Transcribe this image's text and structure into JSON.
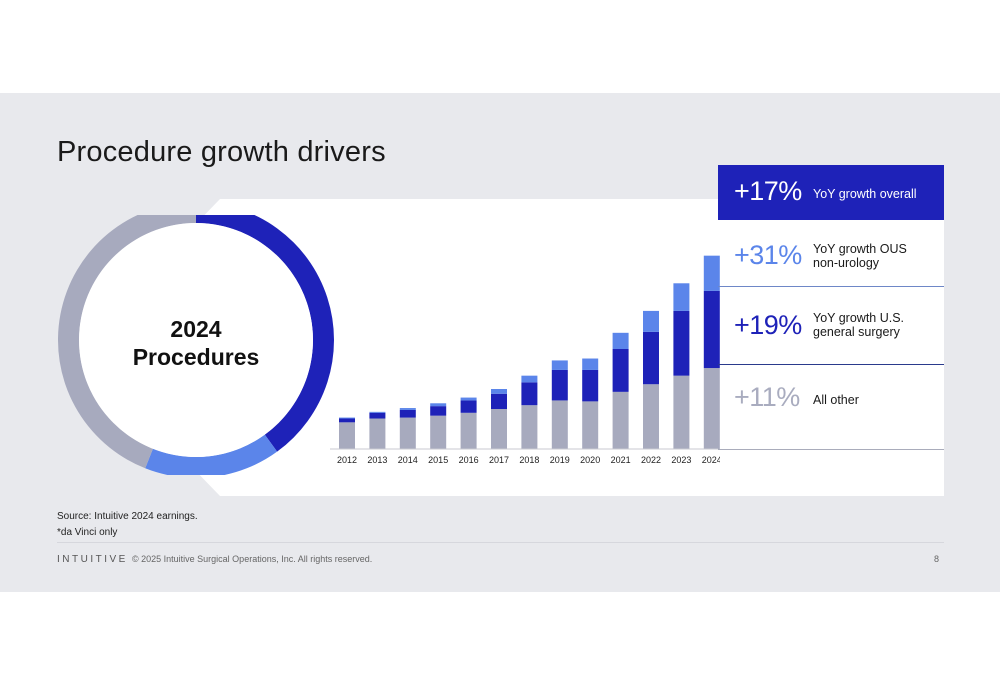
{
  "title": "Procedure growth drivers",
  "donut": {
    "center_line1": "2024",
    "center_line2": "Procedures"
  },
  "chart_data": [
    {
      "type": "pie",
      "title": "2024 Procedures",
      "slices": [
        {
          "label": "OUS non-urology",
          "value": 16,
          "color": "#5b85ea"
        },
        {
          "label": "U.S. general surgery",
          "value": 40,
          "color": "#1e22b8"
        },
        {
          "label": "All other",
          "value": 44,
          "color": "#a7aabe"
        }
      ]
    },
    {
      "type": "bar",
      "stacked": true,
      "categories": [
        "2012",
        "2013",
        "2014",
        "2015",
        "2016",
        "2017",
        "2018",
        "2019",
        "2020",
        "2021",
        "2022",
        "2023",
        "2024"
      ],
      "series": [
        {
          "name": "All other",
          "color": "#a7aabe",
          "values": [
            28,
            32,
            33,
            35,
            38,
            42,
            46,
            51,
            50,
            60,
            68,
            77,
            85
          ]
        },
        {
          "name": "YoY growth U.S. general surgery",
          "color": "#1e22b8",
          "values": [
            4,
            6,
            8,
            10,
            13,
            16,
            24,
            32,
            33,
            45,
            55,
            68,
            81
          ]
        },
        {
          "name": "YoY growth OUS non-urology",
          "color": "#5b85ea",
          "values": [
            1,
            1,
            2,
            3,
            3,
            5,
            7,
            10,
            12,
            17,
            22,
            29,
            37
          ]
        }
      ],
      "grid": false
    }
  ],
  "stats": [
    {
      "pct": "+17%",
      "text1": "YoY growth overall",
      "text2": ""
    },
    {
      "pct": "+31%",
      "text1": "YoY growth OUS",
      "text2": "non-urology"
    },
    {
      "pct": "+19%",
      "text1": "YoY growth U.S.",
      "text2": "general surgery"
    },
    {
      "pct": "+11%",
      "text1": "All other",
      "text2": ""
    }
  ],
  "source": {
    "line1": "Source: Intuitive 2024 earnings.",
    "line2": "*da Vinci only"
  },
  "footer": {
    "logo": "INTUITIVE",
    "copyright": "© 2025 Intuitive Surgical Operations, Inc. All rights reserved.",
    "page": "8"
  }
}
